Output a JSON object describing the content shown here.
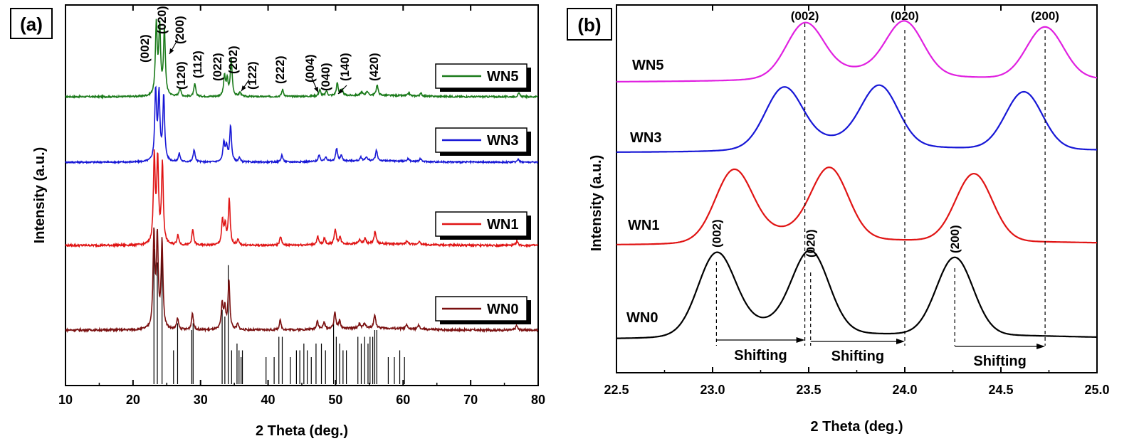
{
  "chart_data": [
    {
      "panel": "(a)",
      "type": "line",
      "xlabel": "2 Theta (deg.)",
      "ylabel": "Intensity (a.u.)",
      "xlim": [
        10,
        80
      ],
      "xticks": [
        10,
        20,
        30,
        40,
        50,
        60,
        70,
        80
      ],
      "yticks": false,
      "legend": "right, one box per trace",
      "series": [
        {
          "name": "WN5",
          "color": "#1a7a1a",
          "offset": 0.0
        },
        {
          "name": "WN3",
          "color": "#1717d6",
          "offset": 0.0
        },
        {
          "name": "WN1",
          "color": "#e01414",
          "offset": 0.0
        },
        {
          "name": "WN0",
          "color": "#7a1010",
          "offset": 0.0
        }
      ],
      "peaks": [
        {
          "x": 23.1,
          "h": 1.0
        },
        {
          "x": 23.6,
          "h": 0.95
        },
        {
          "x": 24.3,
          "h": 0.93
        },
        {
          "x": 26.6,
          "h": 0.12
        },
        {
          "x": 28.8,
          "h": 0.18
        },
        {
          "x": 33.2,
          "h": 0.28
        },
        {
          "x": 33.6,
          "h": 0.22
        },
        {
          "x": 34.2,
          "h": 0.52
        },
        {
          "x": 35.5,
          "h": 0.06
        },
        {
          "x": 41.8,
          "h": 0.1
        },
        {
          "x": 47.3,
          "h": 0.09
        },
        {
          "x": 48.3,
          "h": 0.07
        },
        {
          "x": 49.9,
          "h": 0.18
        },
        {
          "x": 50.6,
          "h": 0.08
        },
        {
          "x": 53.5,
          "h": 0.05
        },
        {
          "x": 54.3,
          "h": 0.06
        },
        {
          "x": 55.8,
          "h": 0.15
        },
        {
          "x": 60.5,
          "h": 0.04
        },
        {
          "x": 62.3,
          "h": 0.04
        },
        {
          "x": 76.8,
          "h": 0.05
        }
      ],
      "annotations": [
        "(002)",
        "(020)",
        "(200)",
        "(120)",
        "(112)",
        "(022)",
        "(202)",
        "(122)",
        "(222)",
        "(004)",
        "(040)",
        "(140)",
        "(420)"
      ],
      "reference_sticks": [
        {
          "x": 23.1,
          "h": 1.0
        },
        {
          "x": 23.6,
          "h": 0.9
        },
        {
          "x": 24.3,
          "h": 0.95
        },
        {
          "x": 26.0,
          "h": 0.25
        },
        {
          "x": 26.6,
          "h": 0.45
        },
        {
          "x": 28.7,
          "h": 0.4
        },
        {
          "x": 28.9,
          "h": 0.45
        },
        {
          "x": 33.2,
          "h": 0.55
        },
        {
          "x": 33.6,
          "h": 0.5
        },
        {
          "x": 34.1,
          "h": 0.88
        },
        {
          "x": 34.6,
          "h": 0.25
        },
        {
          "x": 35.4,
          "h": 0.3
        },
        {
          "x": 35.7,
          "h": 0.25
        },
        {
          "x": 36.0,
          "h": 0.2
        },
        {
          "x": 36.2,
          "h": 0.25
        },
        {
          "x": 39.7,
          "h": 0.2
        },
        {
          "x": 40.9,
          "h": 0.2
        },
        {
          "x": 41.6,
          "h": 0.35
        },
        {
          "x": 42.1,
          "h": 0.35
        },
        {
          "x": 43.3,
          "h": 0.2
        },
        {
          "x": 44.2,
          "h": 0.25
        },
        {
          "x": 44.7,
          "h": 0.25
        },
        {
          "x": 45.3,
          "h": 0.3
        },
        {
          "x": 45.8,
          "h": 0.25
        },
        {
          "x": 46.4,
          "h": 0.2
        },
        {
          "x": 47.1,
          "h": 0.3
        },
        {
          "x": 47.9,
          "h": 0.3
        },
        {
          "x": 48.5,
          "h": 0.25
        },
        {
          "x": 49.7,
          "h": 0.45
        },
        {
          "x": 50.1,
          "h": 0.35
        },
        {
          "x": 50.6,
          "h": 0.3
        },
        {
          "x": 51.1,
          "h": 0.25
        },
        {
          "x": 51.6,
          "h": 0.25
        },
        {
          "x": 53.3,
          "h": 0.35
        },
        {
          "x": 53.8,
          "h": 0.3
        },
        {
          "x": 54.3,
          "h": 0.35
        },
        {
          "x": 54.8,
          "h": 0.3
        },
        {
          "x": 55.1,
          "h": 0.35
        },
        {
          "x": 55.5,
          "h": 0.35
        },
        {
          "x": 55.8,
          "h": 0.4
        },
        {
          "x": 56.1,
          "h": 0.4
        },
        {
          "x": 57.8,
          "h": 0.2
        },
        {
          "x": 58.7,
          "h": 0.2
        },
        {
          "x": 59.5,
          "h": 0.25
        },
        {
          "x": 60.2,
          "h": 0.2
        }
      ]
    },
    {
      "panel": "(b)",
      "type": "line",
      "xlabel": "2 Theta (deg.)",
      "ylabel": "Intensity (a.u.)",
      "xlim": [
        22.5,
        25.0
      ],
      "xticks": [
        "22.5",
        "23.0",
        "23.5",
        "24.0",
        "24.5",
        "25.0"
      ],
      "yticks": false,
      "series": [
        {
          "name": "WN5",
          "color": "#e020e0",
          "peaks": [
            23.48,
            24.0,
            24.73
          ]
        },
        {
          "name": "WN3",
          "color": "#1717d6",
          "peaks": [
            23.37,
            23.87,
            24.62
          ]
        },
        {
          "name": "WN1",
          "color": "#e01414",
          "peaks": [
            23.11,
            23.61,
            24.36
          ]
        },
        {
          "name": "WN0",
          "color": "#000000",
          "peaks": [
            23.02,
            23.51,
            24.26
          ]
        }
      ],
      "reference_lines": [
        {
          "x": 23.02,
          "label": "(002)"
        },
        {
          "x": 23.51,
          "label": "(020)"
        },
        {
          "x": 24.26,
          "label": "(200)"
        },
        {
          "x": 23.48,
          "label": "(002)"
        },
        {
          "x": 24.0,
          "label": "(020)"
        },
        {
          "x": 24.73,
          "label": "(200)"
        }
      ],
      "shift_arrows": [
        {
          "from": 23.02,
          "to": 23.48,
          "label": "Shifting"
        },
        {
          "from": 23.51,
          "to": 24.0,
          "label": "Shifting"
        },
        {
          "from": 24.26,
          "to": 24.73,
          "label": "Shifting"
        }
      ]
    }
  ]
}
